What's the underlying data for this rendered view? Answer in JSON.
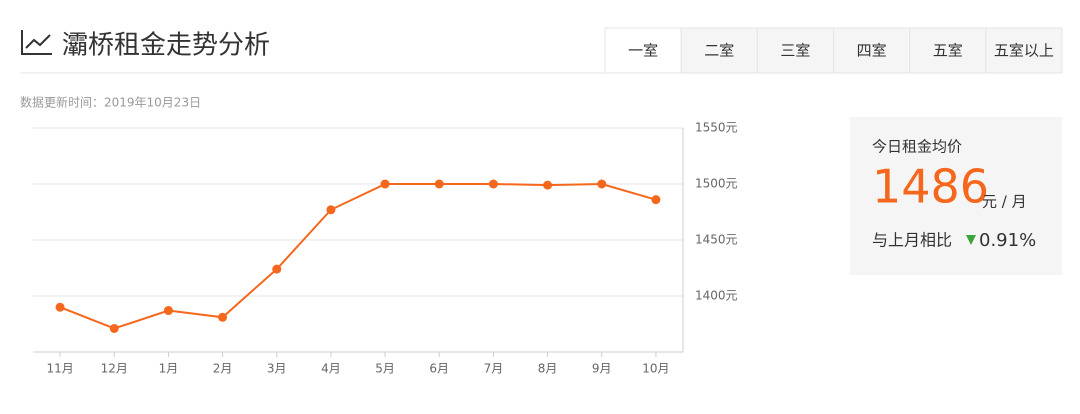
{
  "header": {
    "title": "灞桥租金走势分析",
    "tabs": [
      "一室",
      "二室",
      "三室",
      "四室",
      "五室",
      "五室以上"
    ],
    "update_time": "数据更新时间：2019年10月23日"
  },
  "chart_data": {
    "type": "line",
    "categories": [
      "11月",
      "12月",
      "1月",
      "2月",
      "3月",
      "4月",
      "5月",
      "6月",
      "7月",
      "8月",
      "9月",
      "10月"
    ],
    "series": [
      {
        "name": "租金",
        "color": "#f5671c",
        "values": [
          1390,
          1371,
          1387,
          1381,
          1424,
          1477,
          1500,
          1500,
          1500,
          1499,
          1500,
          1486
        ]
      }
    ],
    "ylim": [
      1350,
      1550
    ],
    "yticks": [
      {
        "value": 1400,
        "label": "1400元"
      },
      {
        "value": 1450,
        "label": "1450元"
      },
      {
        "value": 1500,
        "label": "1500元"
      },
      {
        "value": 1550,
        "label": "1550元"
      }
    ],
    "grid": true
  },
  "panel": {
    "label": "今日租金均价",
    "price": "1486",
    "unit": "元 / 月",
    "compare_label": "与上月相比",
    "change": "0.91%"
  }
}
